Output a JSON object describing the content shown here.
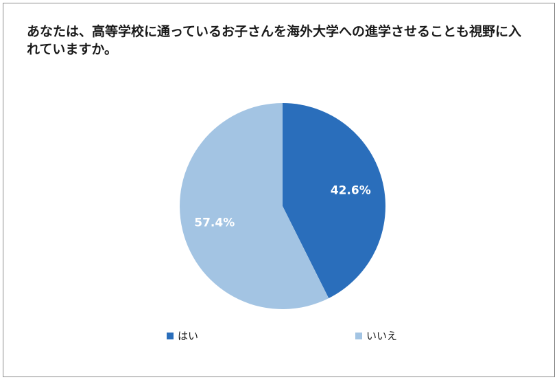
{
  "chart_data": {
    "type": "pie",
    "title": "あなたは、高等学校に通っているお子さんを海外大学への進学させることも視野に入れていますか。",
    "categories": [
      "はい",
      "いいえ"
    ],
    "values": [
      42.6,
      57.4
    ],
    "labels": [
      "42.6%",
      "57.4%"
    ],
    "colors": [
      "#2a6ebb",
      "#a3c4e3"
    ],
    "legend_position": "bottom"
  }
}
